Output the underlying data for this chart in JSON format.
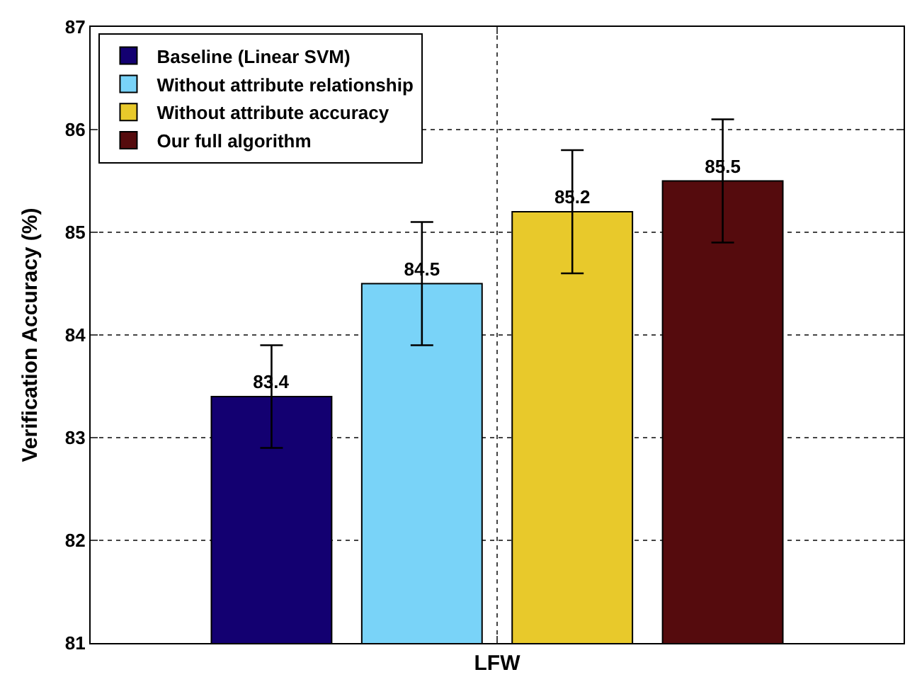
{
  "chart_data": {
    "type": "bar",
    "ylabel": "Verification Accuracy (%)",
    "categories": [
      "LFW"
    ],
    "series": [
      {
        "name": "Baseline (Linear SVM)",
        "color": "#130071",
        "values": [
          83.4
        ],
        "errors": [
          0.5
        ]
      },
      {
        "name": "Without attribute relationship",
        "color": "#79d3f8",
        "values": [
          84.5
        ],
        "errors": [
          0.6
        ]
      },
      {
        "name": "Without attribute accuracy",
        "color": "#e8c92b",
        "values": [
          85.2
        ],
        "errors": [
          0.6
        ]
      },
      {
        "name": "Our full algorithm",
        "color": "#550b0d",
        "values": [
          85.5
        ],
        "errors": [
          0.6
        ]
      }
    ],
    "ylim": [
      81,
      87
    ],
    "yticks": [
      81,
      82,
      83,
      84,
      85,
      86,
      87
    ],
    "grid": true,
    "legend": "top left",
    "data_labels": true
  }
}
